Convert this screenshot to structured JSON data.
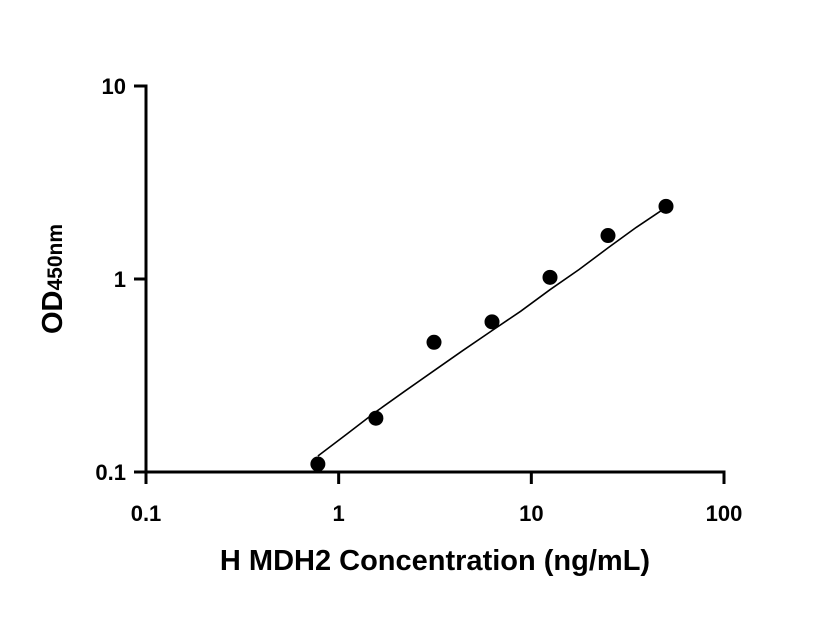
{
  "chart_data": {
    "type": "scatter",
    "title": "",
    "xlabel": "H MDH2 Concentration (ng/mL)",
    "ylabel_main": "OD",
    "ylabel_sub": "450nm",
    "x_scale": "log",
    "y_scale": "log",
    "xlim": [
      0.1,
      100
    ],
    "ylim": [
      0.1,
      10
    ],
    "x_ticks": [
      0.1,
      1,
      10,
      100
    ],
    "x_tick_labels": [
      "0.1",
      "1",
      "10",
      "100"
    ],
    "y_ticks": [
      0.1,
      1,
      10
    ],
    "y_tick_labels": [
      "0.1",
      "1",
      "10"
    ],
    "grid": false,
    "legend": "none",
    "marker_color": "#000000",
    "points": [
      {
        "x": 0.78,
        "y": 0.11
      },
      {
        "x": 1.56,
        "y": 0.19
      },
      {
        "x": 3.125,
        "y": 0.47
      },
      {
        "x": 6.25,
        "y": 0.6
      },
      {
        "x": 12.5,
        "y": 1.02
      },
      {
        "x": 25,
        "y": 1.68
      },
      {
        "x": 50,
        "y": 2.38
      }
    ],
    "fit_curve": [
      {
        "x": 0.78,
        "y": 0.121
      },
      {
        "x": 1.1,
        "y": 0.157
      },
      {
        "x": 1.56,
        "y": 0.205
      },
      {
        "x": 2.2,
        "y": 0.262
      },
      {
        "x": 3.125,
        "y": 0.335
      },
      {
        "x": 4.4,
        "y": 0.425
      },
      {
        "x": 6.25,
        "y": 0.54
      },
      {
        "x": 8.8,
        "y": 0.68
      },
      {
        "x": 12.5,
        "y": 0.88
      },
      {
        "x": 17.7,
        "y": 1.12
      },
      {
        "x": 25,
        "y": 1.45
      },
      {
        "x": 35,
        "y": 1.85
      },
      {
        "x": 50,
        "y": 2.35
      }
    ]
  }
}
